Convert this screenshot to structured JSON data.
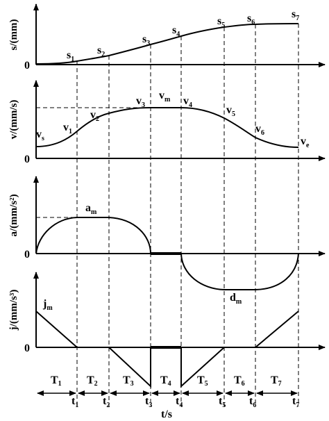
{
  "phase_lines": [
    "t1",
    "t2",
    "t3",
    "t4",
    "t5",
    "t6",
    "t7"
  ],
  "s_panel": {
    "ylabel": "s/(mm)",
    "zero": "0",
    "points": [
      {
        "base": "s",
        "sub": "1"
      },
      {
        "base": "s",
        "sub": "2"
      },
      {
        "base": "s",
        "sub": "3"
      },
      {
        "base": "s",
        "sub": "4"
      },
      {
        "base": "s",
        "sub": "5"
      },
      {
        "base": "s",
        "sub": "6"
      },
      {
        "base": "s",
        "sub": "7"
      }
    ]
  },
  "v_panel": {
    "ylabel": "v/(mm/s)",
    "zero": "0",
    "start": {
      "base": "v",
      "sub": "s"
    },
    "end": {
      "base": "v",
      "sub": "e"
    },
    "max": {
      "base": "v",
      "sub": "m"
    },
    "points": [
      {
        "base": "v",
        "sub": "1"
      },
      {
        "base": "v",
        "sub": "2"
      },
      {
        "base": "v",
        "sub": "3"
      },
      {
        "base": "v",
        "sub": "4"
      },
      {
        "base": "v",
        "sub": "5"
      },
      {
        "base": "v",
        "sub": "6"
      }
    ]
  },
  "a_panel": {
    "ylabel": "a/(mm/s²)",
    "zero": "0",
    "max_accel": {
      "base": "a",
      "sub": "m"
    },
    "max_decel": {
      "base": "d",
      "sub": "m"
    }
  },
  "j_panel": {
    "ylabel": "j/(mm/s³)",
    "zero": "0",
    "max_jerk": {
      "base": "j",
      "sub": "m"
    }
  },
  "intervals": [
    {
      "base": "T",
      "sub": "1"
    },
    {
      "base": "T",
      "sub": "2"
    },
    {
      "base": "T",
      "sub": "3"
    },
    {
      "base": "T",
      "sub": "4"
    },
    {
      "base": "T",
      "sub": "5"
    },
    {
      "base": "T",
      "sub": "6"
    },
    {
      "base": "T",
      "sub": "7"
    }
  ],
  "time_ticks": [
    {
      "base": "t",
      "sub": "1"
    },
    {
      "base": "t",
      "sub": "2"
    },
    {
      "base": "t",
      "sub": "3"
    },
    {
      "base": "t",
      "sub": "4"
    },
    {
      "base": "t",
      "sub": "5"
    },
    {
      "base": "t",
      "sub": "6"
    },
    {
      "base": "t",
      "sub": "7"
    }
  ],
  "xlabel": "t/s",
  "colors": {
    "line": "#000000",
    "background": "#ffffff"
  }
}
